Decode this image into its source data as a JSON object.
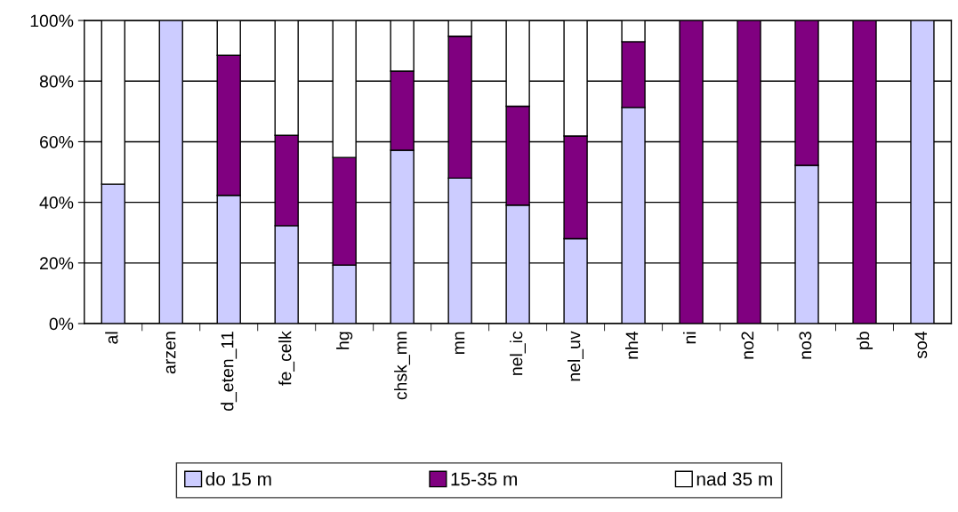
{
  "chart_data": {
    "type": "bar",
    "stacked": true,
    "categories": [
      "al",
      "arzen",
      "d_eten_11",
      "fe_celk",
      "hg",
      "chsk_mn",
      "mn",
      "nel_ic",
      "nel_uv",
      "nh4",
      "ni",
      "no2",
      "no3",
      "pb",
      "so4"
    ],
    "series": [
      {
        "name": "do 15 m",
        "color": "#ccccff",
        "values": [
          46,
          100,
          42.3,
          32.3,
          19.3,
          57.2,
          48,
          39.1,
          28,
          71.3,
          0,
          0,
          52.2,
          0,
          100
        ]
      },
      {
        "name": "15-35 m",
        "color": "#800080",
        "values": [
          0,
          0,
          46.2,
          29.8,
          35.5,
          26.1,
          46.8,
          32.6,
          33.9,
          21.7,
          100,
          100,
          47.8,
          100,
          0
        ]
      },
      {
        "name": "nad 35 m",
        "color": "#ffffff",
        "values": [
          54,
          0,
          11.5,
          37.9,
          45.2,
          16.7,
          5.2,
          28.3,
          38.1,
          7,
          0,
          0,
          0,
          0,
          0
        ]
      }
    ],
    "ylim": [
      0,
      100
    ],
    "yticks": [
      {
        "value": 0,
        "label": "0%"
      },
      {
        "value": 20,
        "label": "20%"
      },
      {
        "value": 40,
        "label": "40%"
      },
      {
        "value": 60,
        "label": "60%"
      },
      {
        "value": 80,
        "label": "80%"
      },
      {
        "value": 100,
        "label": "100%"
      }
    ],
    "grid": "y",
    "legend": "bottom"
  }
}
